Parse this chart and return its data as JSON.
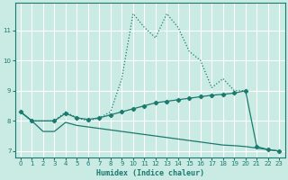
{
  "xlabel": "Humidex (Indice chaleur)",
  "background_color": "#caeae4",
  "grid_color": "#ffffff",
  "line_color": "#1a7a6e",
  "ylim": [
    6.8,
    11.9
  ],
  "xlim": [
    -0.5,
    23.5
  ],
  "yticks": [
    7,
    8,
    9,
    10,
    11
  ],
  "xticks": [
    0,
    1,
    2,
    3,
    4,
    5,
    6,
    7,
    8,
    9,
    10,
    11,
    12,
    13,
    14,
    15,
    16,
    17,
    18,
    19,
    20,
    21,
    22,
    23
  ],
  "curve_upper_x": [
    0,
    1,
    3,
    4,
    5,
    6,
    7,
    8,
    9,
    10,
    11,
    12,
    13,
    14,
    15,
    16,
    17,
    18,
    19,
    20
  ],
  "curve_upper_y": [
    8.3,
    8.0,
    8.0,
    8.3,
    8.1,
    8.0,
    8.1,
    8.3,
    9.4,
    11.55,
    11.1,
    10.75,
    11.55,
    11.1,
    10.3,
    10.0,
    9.1,
    9.4,
    9.0,
    9.0
  ],
  "curve_mid_x": [
    0,
    1,
    3,
    4,
    5,
    6,
    7,
    8,
    9,
    10,
    11,
    12,
    13,
    14,
    15,
    16,
    17,
    18,
    19,
    20,
    21,
    22,
    23
  ],
  "curve_mid_y": [
    8.3,
    8.0,
    8.0,
    8.25,
    8.1,
    8.05,
    8.1,
    8.2,
    8.3,
    8.4,
    8.5,
    8.6,
    8.65,
    8.7,
    8.75,
    8.8,
    8.85,
    8.88,
    8.92,
    9.0,
    7.15,
    7.05,
    7.0
  ],
  "curve_bot_x": [
    0,
    1,
    2,
    3,
    4,
    5,
    6,
    7,
    8,
    9,
    10,
    11,
    12,
    13,
    14,
    15,
    16,
    17,
    18,
    19,
    20,
    21,
    22,
    23
  ],
  "curve_bot_y": [
    8.3,
    8.0,
    7.65,
    7.65,
    7.95,
    7.85,
    7.8,
    7.75,
    7.7,
    7.65,
    7.6,
    7.55,
    7.5,
    7.45,
    7.4,
    7.35,
    7.3,
    7.25,
    7.2,
    7.18,
    7.15,
    7.1,
    7.05,
    7.0
  ]
}
